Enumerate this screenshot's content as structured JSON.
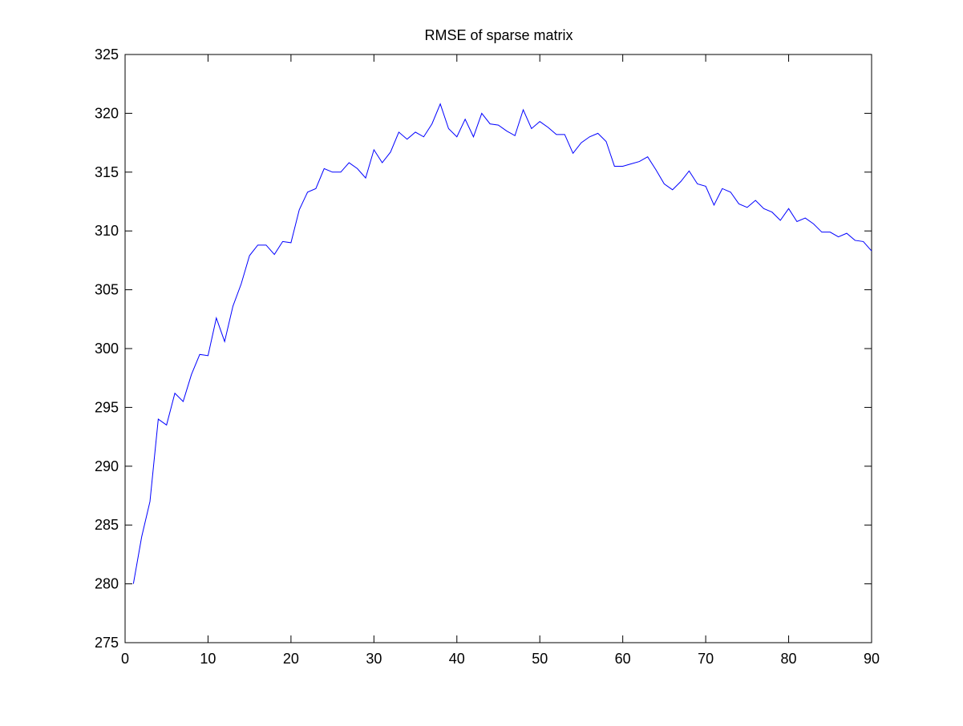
{
  "chart_data": {
    "type": "line",
    "title": "RMSE of sparse matrix",
    "xlabel": "",
    "ylabel": "",
    "xlim": [
      0,
      90
    ],
    "ylim": [
      275,
      325
    ],
    "xticks": [
      0,
      10,
      20,
      30,
      40,
      50,
      60,
      70,
      80,
      90
    ],
    "yticks": [
      275,
      280,
      285,
      290,
      295,
      300,
      305,
      310,
      315,
      320,
      325
    ],
    "grid": false,
    "box": true,
    "series_color": "#0000ff",
    "series": [
      {
        "x": [
          1,
          2,
          3,
          4,
          5,
          6,
          7,
          8,
          9,
          10,
          11,
          12,
          13,
          14,
          15,
          16,
          17,
          18,
          19,
          20,
          21,
          22,
          23,
          24,
          25,
          26,
          27,
          28,
          29,
          30,
          31,
          32,
          33,
          34,
          35,
          36,
          37,
          38,
          39,
          40,
          41,
          42,
          43,
          44,
          45,
          46,
          47,
          48,
          49,
          50,
          51,
          52,
          53,
          54,
          55,
          56,
          57,
          58,
          59,
          60,
          61,
          62,
          63,
          64,
          65,
          66,
          67,
          68,
          69,
          70,
          71,
          72,
          73,
          74,
          75,
          76,
          77,
          78,
          79,
          80,
          81,
          82,
          83,
          84,
          85,
          86,
          87,
          88,
          89,
          90
        ],
        "values": [
          280.0,
          284.0,
          287.0,
          294.0,
          293.5,
          296.2,
          295.5,
          297.8,
          299.5,
          299.4,
          302.6,
          300.6,
          303.6,
          305.5,
          307.9,
          308.8,
          308.8,
          308.0,
          309.1,
          309.0,
          311.8,
          313.3,
          313.6,
          315.3,
          315.0,
          315.0,
          315.8,
          315.3,
          314.5,
          316.9,
          315.8,
          316.7,
          318.4,
          317.8,
          318.4,
          318.0,
          319.1,
          320.8,
          318.7,
          318.0,
          319.5,
          318.0,
          320.0,
          319.1,
          319.0,
          318.5,
          318.1,
          320.3,
          318.7,
          319.3,
          318.8,
          318.2,
          318.2,
          316.6,
          317.5,
          318.0,
          318.3,
          317.6,
          315.5,
          315.5,
          315.7,
          315.9,
          316.3,
          315.2,
          314.0,
          313.5,
          314.2,
          315.1,
          314.0,
          313.8,
          312.2,
          313.6,
          313.3,
          312.3,
          312.0,
          312.6,
          311.9,
          311.6,
          310.9,
          311.9,
          310.8,
          311.1,
          310.6,
          309.9,
          309.9,
          309.5,
          309.8,
          309.2,
          309.1,
          308.3
        ]
      }
    ]
  }
}
